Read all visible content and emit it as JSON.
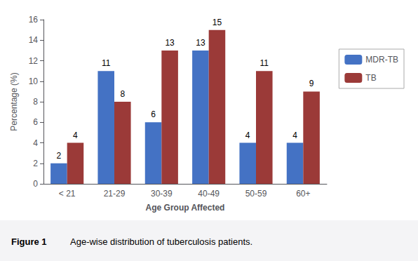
{
  "chart_data": {
    "type": "bar",
    "categories": [
      "< 21",
      "21-29",
      "30-39",
      "40-49",
      "50-59",
      "60+"
    ],
    "series": [
      {
        "name": "MDR-TB",
        "color": "#4472C4",
        "values": [
          2,
          11,
          6,
          13,
          4,
          4
        ]
      },
      {
        "name": "TB",
        "color": "#9B3A38",
        "values": [
          4,
          8,
          13,
          15,
          11,
          9
        ]
      }
    ],
    "xlabel": "Age Group Affected",
    "ylabel": "Percentage (%)",
    "ylim": [
      0,
      16
    ],
    "yticks": [
      0,
      2,
      4,
      6,
      8,
      10,
      12,
      14,
      16
    ],
    "grid": false,
    "legend": "right",
    "data_labels": true,
    "annotations": [
      "Figure 1",
      "Age-wise distribution of tuberculosis patients."
    ]
  }
}
